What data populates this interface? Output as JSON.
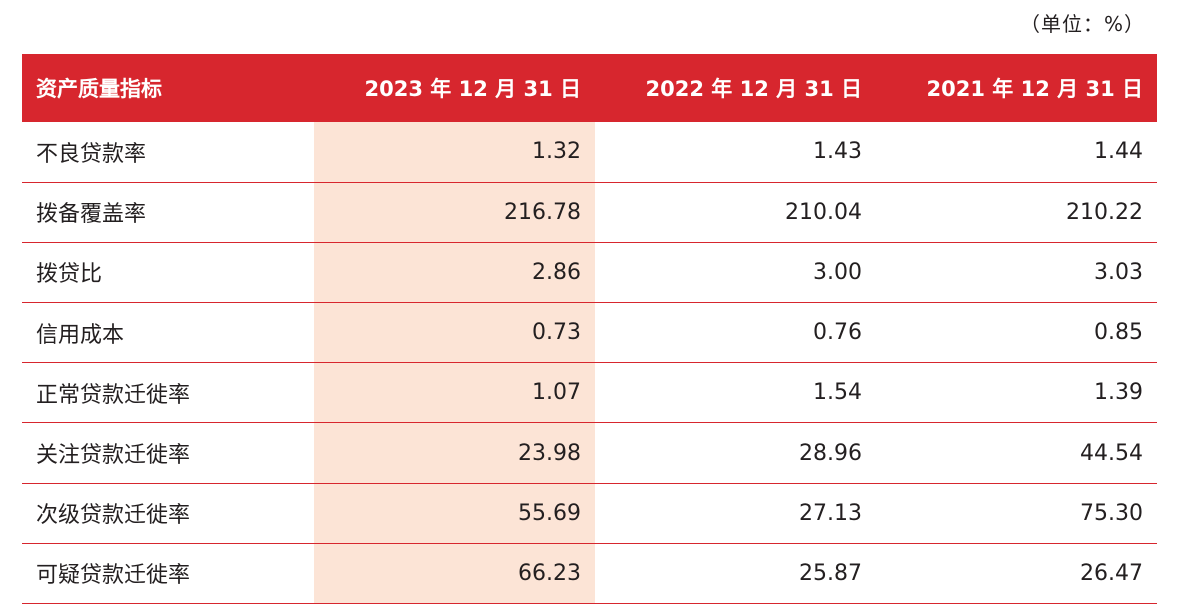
{
  "unit_label": "（单位：%）",
  "colors": {
    "header_bg": "#d7262e",
    "highlight_bg": "#fce4d6",
    "rule": "#d7262e"
  },
  "table": {
    "headers": [
      "资产质量指标",
      "2023 年 12 月 31 日",
      "2022 年 12 月 31 日",
      "2021 年 12 月 31 日"
    ],
    "rows": [
      {
        "label": "不良贷款率",
        "values": [
          "1.32",
          "1.43",
          "1.44"
        ]
      },
      {
        "label": "拨备覆盖率",
        "values": [
          "216.78",
          "210.04",
          "210.22"
        ]
      },
      {
        "label": "拨贷比",
        "values": [
          "2.86",
          "3.00",
          "3.03"
        ]
      },
      {
        "label": "信用成本",
        "values": [
          "0.73",
          "0.76",
          "0.85"
        ]
      },
      {
        "label": "正常贷款迁徙率",
        "values": [
          "1.07",
          "1.54",
          "1.39"
        ]
      },
      {
        "label": "关注贷款迁徙率",
        "values": [
          "23.98",
          "28.96",
          "44.54"
        ]
      },
      {
        "label": "次级贷款迁徙率",
        "values": [
          "55.69",
          "27.13",
          "75.30"
        ]
      },
      {
        "label": "可疑贷款迁徙率",
        "values": [
          "66.23",
          "25.87",
          "26.47"
        ]
      }
    ]
  }
}
